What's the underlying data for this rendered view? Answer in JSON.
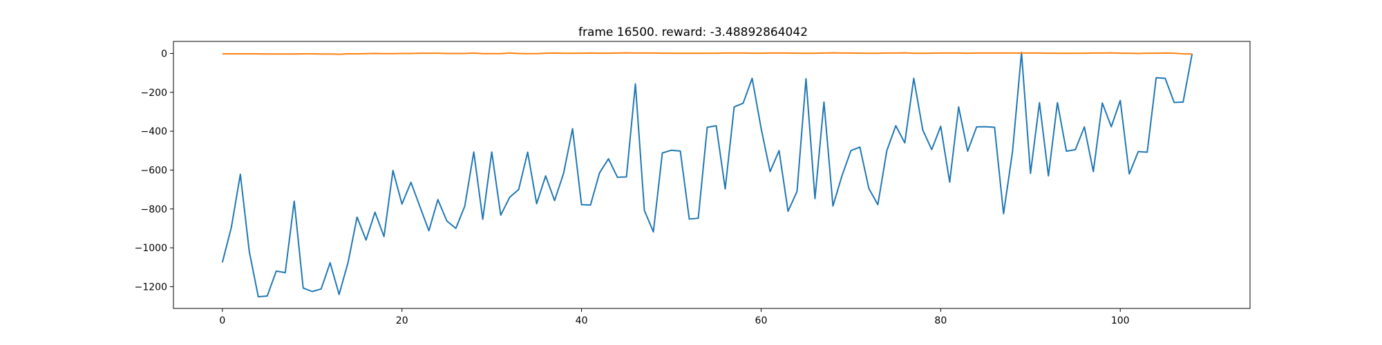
{
  "chart_data": {
    "type": "line",
    "title": "frame 16500. reward: -3.48892864042",
    "xlabel": "",
    "ylabel": "",
    "xlim": [
      -5.45,
      114.45
    ],
    "ylim": [
      -1312,
      62
    ],
    "xticks": [
      0,
      20,
      40,
      60,
      80,
      100
    ],
    "yticks": [
      0,
      -200,
      -400,
      -600,
      -800,
      -1000,
      -1200
    ],
    "grid": false,
    "series": [
      {
        "color": "#1f77b4",
        "values": [
          -1075,
          -895,
          -622,
          -1020,
          -1252,
          -1248,
          -1120,
          -1128,
          -760,
          -1207,
          -1225,
          -1212,
          -1077,
          -1240,
          -1075,
          -842,
          -960,
          -817,
          -942,
          -602,
          -775,
          -663,
          -788,
          -912,
          -752,
          -862,
          -900,
          -785,
          -507,
          -853,
          -507,
          -832,
          -740,
          -700,
          -508,
          -773,
          -630,
          -757,
          -617,
          -387,
          -778,
          -780,
          -615,
          -542,
          -637,
          -635,
          -157,
          -808,
          -918,
          -512,
          -498,
          -502,
          -852,
          -848,
          -380,
          -372,
          -697,
          -275,
          -256,
          -128,
          -385,
          -608,
          -500,
          -812,
          -710,
          -130,
          -747,
          -250,
          -785,
          -630,
          -500,
          -482,
          -695,
          -778,
          -500,
          -372,
          -460,
          -128,
          -393,
          -495,
          -375,
          -662,
          -275,
          -503,
          -378,
          -377,
          -380,
          -825,
          -505,
          5,
          -617,
          -253,
          -630,
          -253,
          -503,
          -495,
          -378,
          -608,
          -255,
          -377,
          -242,
          -620,
          -505,
          -508,
          -125,
          -128,
          -252,
          -250,
          -2
        ]
      },
      {
        "color": "#ff7f0e",
        "values": [
          -2,
          -2,
          -2,
          -2,
          -2,
          -3,
          -3,
          -3,
          -3,
          -2,
          -2,
          -3,
          -3,
          -4,
          -2,
          -2,
          -1,
          0,
          -1,
          -1,
          0,
          0,
          1,
          1,
          1,
          0,
          0,
          0,
          2,
          -1,
          -1,
          -1,
          2,
          0,
          -1,
          -1,
          1,
          2,
          1,
          1,
          1,
          2,
          1,
          1,
          2,
          3,
          2,
          2,
          2,
          1,
          1,
          1,
          1,
          1,
          1,
          1,
          2,
          2,
          2,
          1,
          1,
          2,
          2,
          2,
          1,
          1,
          1,
          2,
          3,
          2,
          2,
          1,
          1,
          1,
          2,
          2,
          3,
          1,
          1,
          1,
          2,
          2,
          2,
          1,
          2,
          2,
          2,
          2,
          2,
          2,
          2,
          2,
          1,
          1,
          1,
          1,
          1,
          2,
          2,
          3,
          1,
          1,
          0,
          1,
          1,
          2,
          1,
          -2,
          -3
        ]
      }
    ]
  }
}
